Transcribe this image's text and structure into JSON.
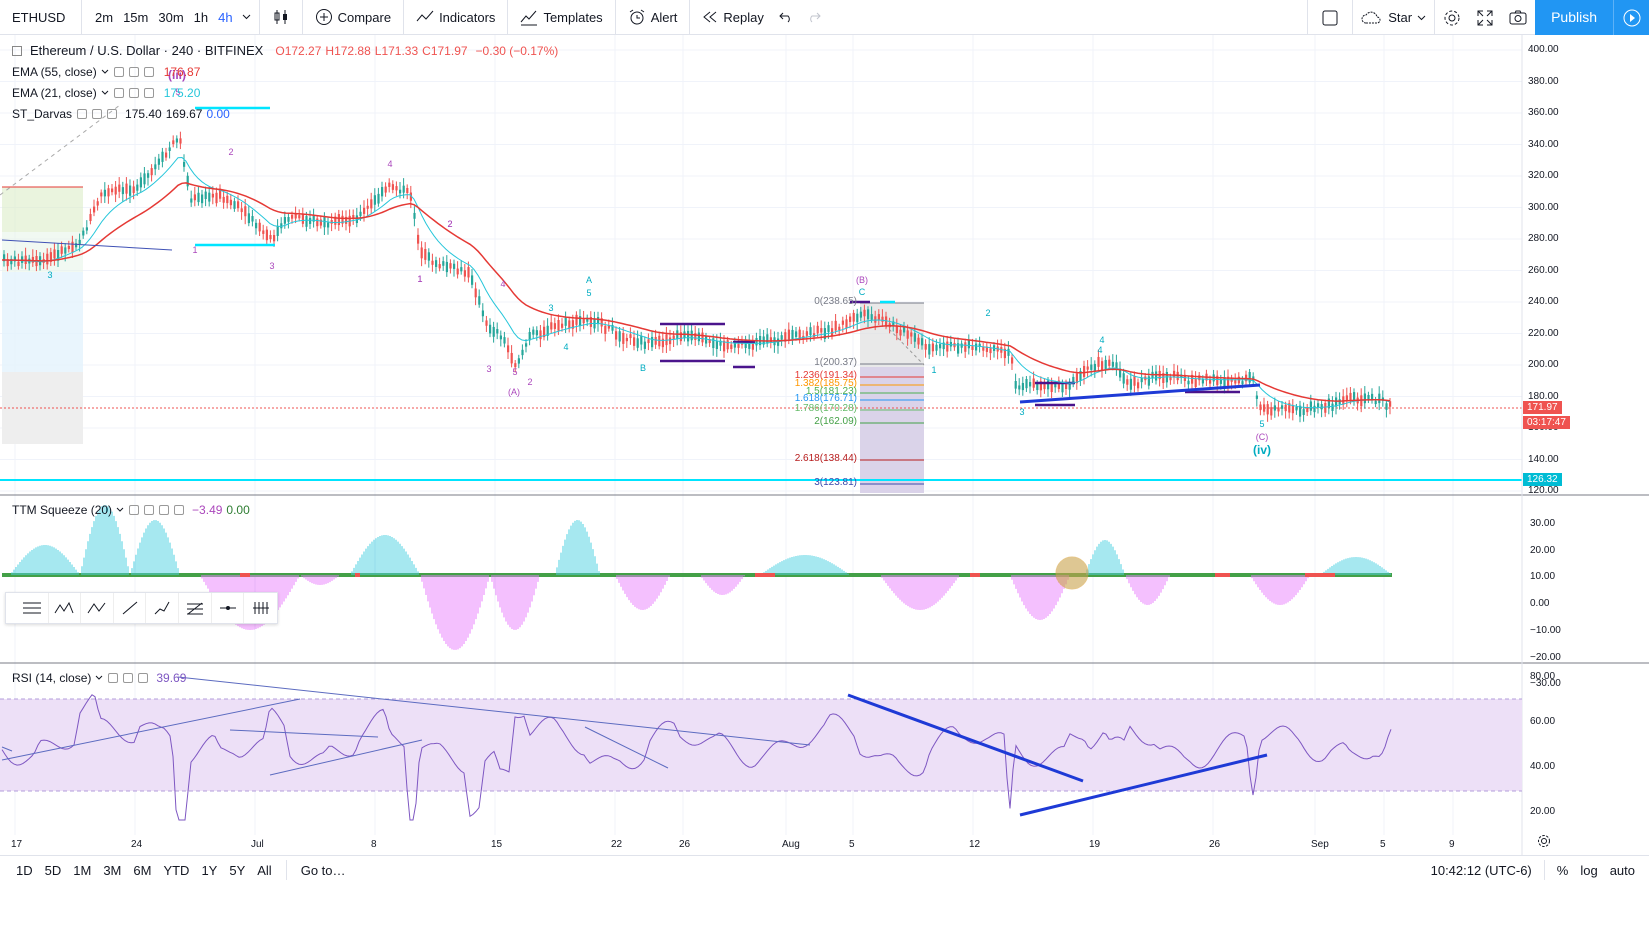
{
  "toolbar": {
    "symbol": "ETHUSD",
    "timeframes": [
      "2m",
      "15m",
      "30m",
      "1h",
      "4h"
    ],
    "active_timeframe": "4h",
    "compare_label": "Compare",
    "indicators_label": "Indicators",
    "templates_label": "Templates",
    "alert_label": "Alert",
    "replay_label": "Replay",
    "star_label": "Star",
    "publish_label": "Publish"
  },
  "main_chart": {
    "title": "Ethereum / U.S. Dollar · 240 · BITFINEX",
    "open": "O172.27",
    "high": "H172.88",
    "low": "L171.33",
    "close": "C171.97",
    "change": "−0.30 (−0.17%)",
    "ema55_label": "EMA (55, close)",
    "ema55_value": "176.87",
    "ema21_label": "EMA (21, close)",
    "ema21_value": "175.20",
    "darvas_label": "ST_Darvas",
    "darvas_v1": "175.40",
    "darvas_v2": "169.67",
    "darvas_v3": "0.00",
    "price_ticks": [
      "400.00",
      "380.00",
      "360.00",
      "340.00",
      "320.00",
      "300.00",
      "280.00",
      "260.00",
      "240.00",
      "220.00",
      "200.00",
      "180.00",
      "160.00",
      "140.00",
      "120.00"
    ],
    "last_price": "171.97",
    "countdown": "03:17:47",
    "line_price": "126.32",
    "fib_labels": [
      "0(238.65)",
      "1(200.37)",
      "1.236(191.34)",
      "1.382(185.75)",
      "1.5(181.23)",
      "1.618(176.71)",
      "1.786(170.28)",
      "2(162.09)",
      "2.618(138.44)",
      "3(123.81)"
    ],
    "wave_labels": [
      "(iii)",
      "5",
      "2",
      "1",
      "3",
      "4",
      "1",
      "2",
      "4",
      "3",
      "5",
      "2",
      "(A)",
      "3",
      "4",
      "A",
      "5",
      "B",
      "(B)",
      "C",
      "1",
      "2",
      "3",
      "4",
      "5",
      "(C)",
      "(iv)",
      "4",
      "1",
      "2",
      "3"
    ]
  },
  "ttm": {
    "label": "TTM Squeeze (20)",
    "v1": "−3.49",
    "v2": "0.00",
    "ticks": [
      "30.00",
      "20.00",
      "10.00",
      "0.00",
      "−10.00",
      "−20.00",
      "−30.00"
    ]
  },
  "rsi": {
    "label": "RSI (14, close)",
    "value": "39.69",
    "ticks": [
      "80.00",
      "60.00",
      "40.00",
      "20.00"
    ]
  },
  "time_axis": [
    "17",
    "24",
    "Jul",
    "8",
    "15",
    "22",
    "26",
    "Aug",
    "5",
    "12",
    "19",
    "26",
    "Sep",
    "5",
    "9"
  ],
  "bottom": {
    "ranges": [
      "1D",
      "5D",
      "1M",
      "3M",
      "6M",
      "YTD",
      "1Y",
      "5Y",
      "All"
    ],
    "goto_label": "Go to…",
    "clock": "10:42:12 (UTC-6)",
    "percent_label": "%",
    "log_label": "log",
    "auto_label": "auto"
  },
  "colors": {
    "ema55": "#e53935",
    "ema21": "#26c6da",
    "accent": "#2196f3",
    "down": "#ef5350",
    "fibline": "#00e5ff"
  }
}
